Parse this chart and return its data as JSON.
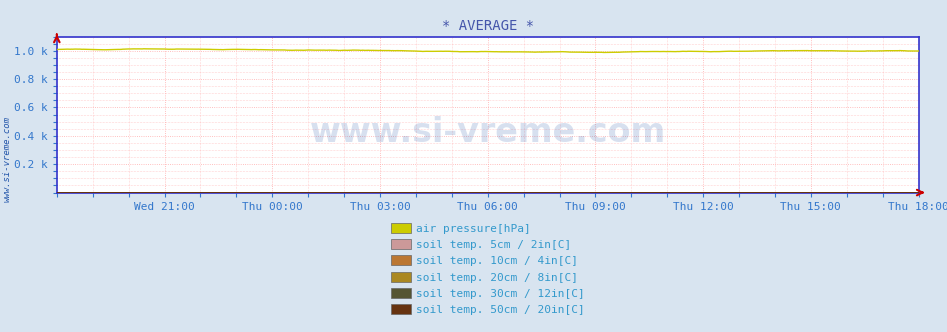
{
  "title": "* AVERAGE *",
  "title_color": "#4455aa",
  "title_fontsize": 10,
  "fig_bg_color": "#d8e4f0",
  "plot_bg_color": "#ffffff",
  "grid_color": "#ffaaaa",
  "axis_color": "#3333cc",
  "tick_color": "#3377cc",
  "tick_fontsize": 8,
  "watermark_side": "www.si-vreme.com",
  "watermark_center": "www.si-vreme.com",
  "watermark_color": "#2255aa",
  "air_pressure_color": "#cccc00",
  "soil_5cm_color": "#cc9999",
  "soil_10cm_color": "#bb7733",
  "soil_20cm_color": "#aa8822",
  "soil_30cm_color": "#555533",
  "soil_50cm_color": "#663311",
  "legend_labels": [
    "air pressure[hPa]",
    "soil temp. 5cm / 2in[C]",
    "soil temp. 10cm / 4in[C]",
    "soil temp. 20cm / 8in[C]",
    "soil temp. 30cm / 12in[C]",
    "soil temp. 50cm / 20in[C]"
  ],
  "legend_colors": [
    "#cccc00",
    "#cc9999",
    "#bb7733",
    "#aa8822",
    "#555533",
    "#663311"
  ],
  "legend_fontsize": 8,
  "legend_text_color": "#3399cc",
  "x_tick_pos": [
    180,
    360,
    540,
    720,
    900,
    1080,
    1260,
    1440
  ],
  "x_tick_labels": [
    "Wed 21:00",
    "Thu 00:00",
    "Thu 03:00",
    "Thu 06:00",
    "Thu 09:00",
    "Thu 12:00",
    "Thu 15:00",
    "Thu 18:00"
  ],
  "y_tick_pos": [
    0.2,
    0.4,
    0.6,
    0.8,
    1.0
  ],
  "y_tick_labels": [
    "0.2 k",
    "0.4 k",
    "0.6 k",
    "0.8 k",
    "1.0 k"
  ],
  "ylim": [
    0,
    1.1
  ],
  "xlim": [
    0,
    1440
  ]
}
